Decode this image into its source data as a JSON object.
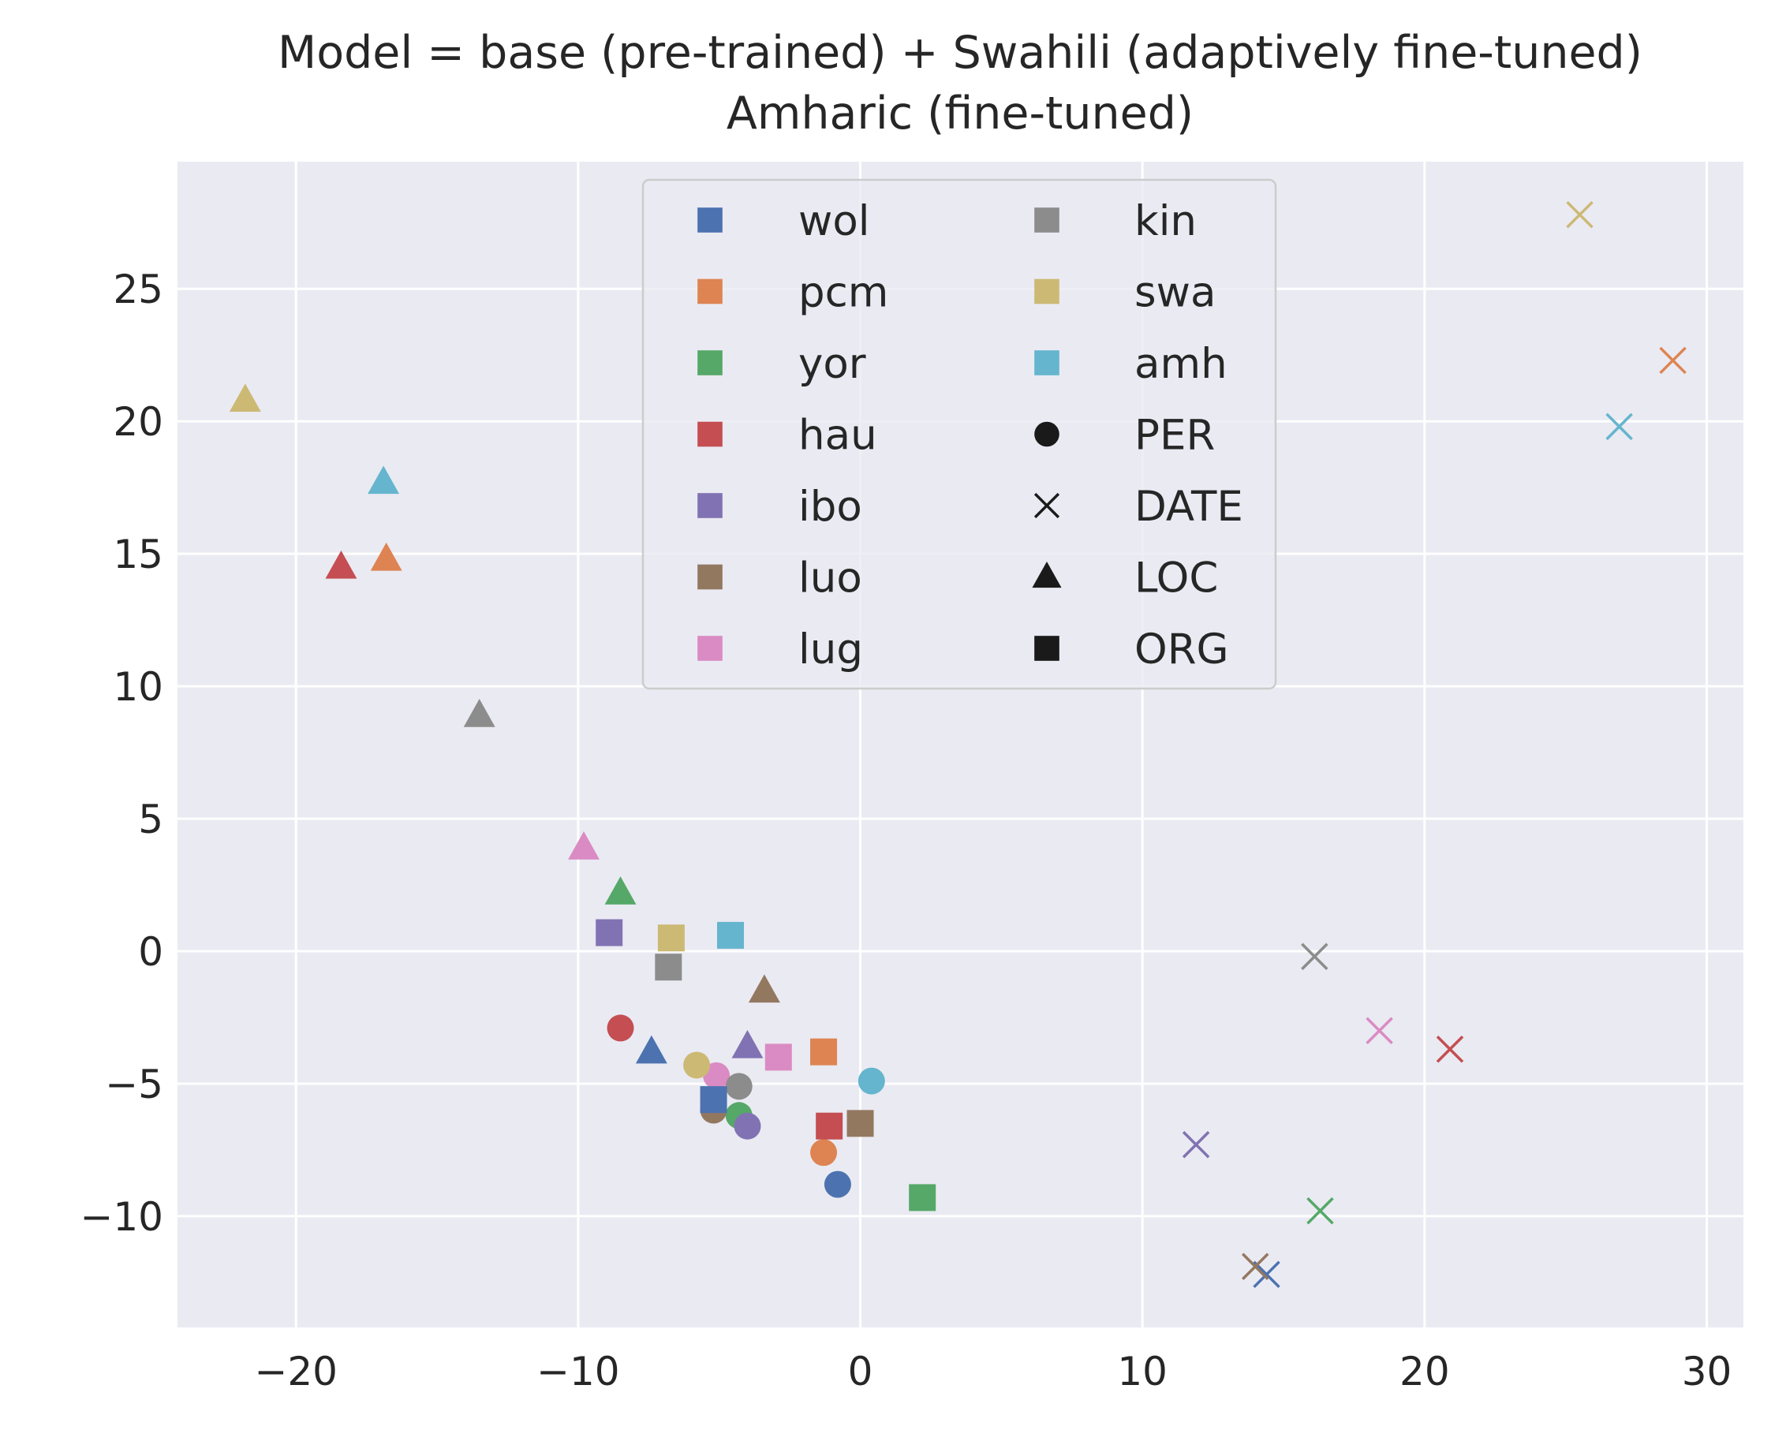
{
  "chart_data": {
    "type": "scatter",
    "title": [
      "Model = base (pre-trained) + Swahili (adaptively fine-tuned)",
      "Amharic (fine-tuned)"
    ],
    "xlabel": "",
    "ylabel": "",
    "xlim": [
      -24.2,
      31.3
    ],
    "ylim": [
      -14.2,
      29.8
    ],
    "xticks": [
      -20,
      -10,
      0,
      10,
      20,
      30
    ],
    "yticks": [
      -10,
      -5,
      0,
      5,
      10,
      15,
      20,
      25
    ],
    "grid": true,
    "legend_position": "top-center",
    "languages": [
      {
        "name": "wol",
        "color": "#4c72b0"
      },
      {
        "name": "pcm",
        "color": "#dd8452"
      },
      {
        "name": "yor",
        "color": "#55a868"
      },
      {
        "name": "hau",
        "color": "#c44e52"
      },
      {
        "name": "ibo",
        "color": "#8172b3"
      },
      {
        "name": "luo",
        "color": "#937860"
      },
      {
        "name": "lug",
        "color": "#da8bc3"
      },
      {
        "name": "kin",
        "color": "#8c8c8c"
      },
      {
        "name": "swa",
        "color": "#ccb974"
      },
      {
        "name": "amh",
        "color": "#64b5cd"
      }
    ],
    "entity_types": [
      {
        "name": "PER",
        "marker": "circle"
      },
      {
        "name": "DATE",
        "marker": "x"
      },
      {
        "name": "LOC",
        "marker": "triangle"
      },
      {
        "name": "ORG",
        "marker": "square"
      }
    ],
    "points": [
      {
        "lang": "wol",
        "entity": "PER",
        "x": -0.8,
        "y": -8.8
      },
      {
        "lang": "pcm",
        "entity": "PER",
        "x": -1.3,
        "y": -7.6
      },
      {
        "lang": "yor",
        "entity": "PER",
        "x": -4.3,
        "y": -6.2
      },
      {
        "lang": "hau",
        "entity": "PER",
        "x": -8.5,
        "y": -2.9
      },
      {
        "lang": "ibo",
        "entity": "PER",
        "x": -4.0,
        "y": -6.6
      },
      {
        "lang": "luo",
        "entity": "PER",
        "x": -5.2,
        "y": -6.0
      },
      {
        "lang": "lug",
        "entity": "PER",
        "x": -5.1,
        "y": -4.7
      },
      {
        "lang": "kin",
        "entity": "PER",
        "x": -4.3,
        "y": -5.1
      },
      {
        "lang": "swa",
        "entity": "PER",
        "x": -5.8,
        "y": -4.3
      },
      {
        "lang": "amh",
        "entity": "PER",
        "x": 0.4,
        "y": -4.9
      },
      {
        "lang": "wol",
        "entity": "DATE",
        "x": 14.4,
        "y": -12.2
      },
      {
        "lang": "pcm",
        "entity": "DATE",
        "x": 28.8,
        "y": 22.3
      },
      {
        "lang": "yor",
        "entity": "DATE",
        "x": 16.3,
        "y": -9.8
      },
      {
        "lang": "hau",
        "entity": "DATE",
        "x": 20.9,
        "y": -3.7
      },
      {
        "lang": "ibo",
        "entity": "DATE",
        "x": 11.9,
        "y": -7.3
      },
      {
        "lang": "luo",
        "entity": "DATE",
        "x": 14.0,
        "y": -11.9
      },
      {
        "lang": "lug",
        "entity": "DATE",
        "x": 18.4,
        "y": -3.0
      },
      {
        "lang": "kin",
        "entity": "DATE",
        "x": 16.1,
        "y": -0.2
      },
      {
        "lang": "swa",
        "entity": "DATE",
        "x": 25.5,
        "y": 27.8
      },
      {
        "lang": "amh",
        "entity": "DATE",
        "x": 26.9,
        "y": 19.8
      },
      {
        "lang": "wol",
        "entity": "LOC",
        "x": -7.4,
        "y": -3.8
      },
      {
        "lang": "pcm",
        "entity": "LOC",
        "x": -16.8,
        "y": 14.8
      },
      {
        "lang": "yor",
        "entity": "LOC",
        "x": -8.5,
        "y": 2.2
      },
      {
        "lang": "hau",
        "entity": "LOC",
        "x": -18.4,
        "y": 14.5
      },
      {
        "lang": "ibo",
        "entity": "LOC",
        "x": -4.0,
        "y": -3.6
      },
      {
        "lang": "luo",
        "entity": "LOC",
        "x": -3.4,
        "y": -1.5
      },
      {
        "lang": "lug",
        "entity": "LOC",
        "x": -9.8,
        "y": 3.9
      },
      {
        "lang": "kin",
        "entity": "LOC",
        "x": -13.5,
        "y": 8.9
      },
      {
        "lang": "swa",
        "entity": "LOC",
        "x": -21.8,
        "y": 20.8
      },
      {
        "lang": "amh",
        "entity": "LOC",
        "x": -16.9,
        "y": 17.7
      },
      {
        "lang": "wol",
        "entity": "ORG",
        "x": -5.2,
        "y": -5.6
      },
      {
        "lang": "pcm",
        "entity": "ORG",
        "x": -1.3,
        "y": -3.8
      },
      {
        "lang": "yor",
        "entity": "ORG",
        "x": 2.2,
        "y": -9.3
      },
      {
        "lang": "hau",
        "entity": "ORG",
        "x": -1.1,
        "y": -6.6
      },
      {
        "lang": "ibo",
        "entity": "ORG",
        "x": -8.9,
        "y": 0.7
      },
      {
        "lang": "luo",
        "entity": "ORG",
        "x": 0.0,
        "y": -6.5
      },
      {
        "lang": "lug",
        "entity": "ORG",
        "x": -2.9,
        "y": -4.0
      },
      {
        "lang": "kin",
        "entity": "ORG",
        "x": -6.8,
        "y": -0.6
      },
      {
        "lang": "swa",
        "entity": "ORG",
        "x": -6.7,
        "y": 0.5
      },
      {
        "lang": "amh",
        "entity": "ORG",
        "x": -4.6,
        "y": 0.6
      }
    ]
  }
}
